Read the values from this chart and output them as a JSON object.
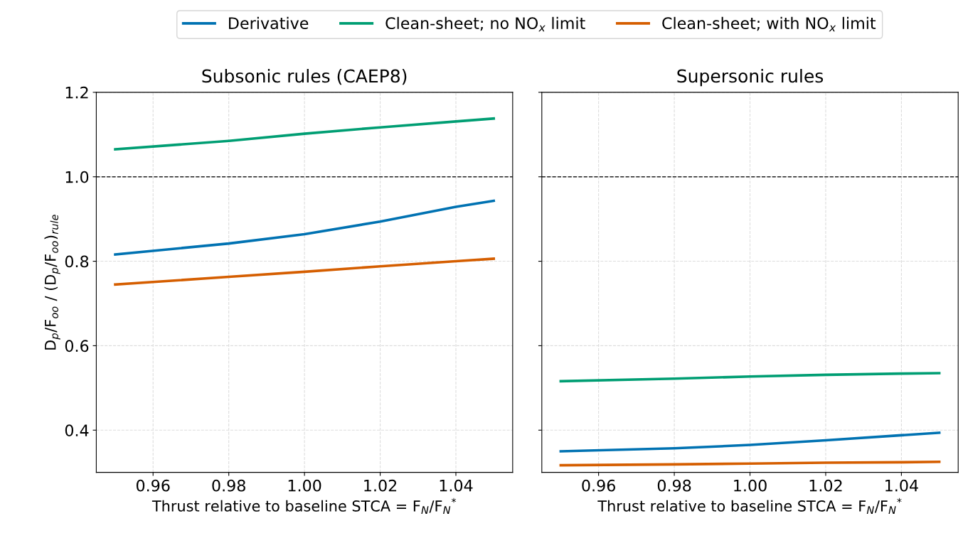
{
  "chart_data": [
    {
      "type": "line",
      "title": "Subsonic rules (CAEP8)",
      "xlabel": "Thrust relative to baseline STCA = F$_{N}$/F$_{N}$$^{*}$",
      "ylabel": "D$_{p}$/F$_{oo}$ / (D$_{p}$/F$_{oo}$)$_{rule}$",
      "x": [
        0.95,
        0.98,
        1.0,
        1.02,
        1.04,
        1.05
      ],
      "xlim": [
        0.945,
        1.055
      ],
      "xticks": [
        {
          "value": 0.96,
          "label": "0.96"
        },
        {
          "value": 0.98,
          "label": "0.98"
        },
        {
          "value": 1.0,
          "label": "1.00"
        },
        {
          "value": 1.02,
          "label": "1.02"
        },
        {
          "value": 1.04,
          "label": "1.04"
        }
      ],
      "ylim": [
        0.3,
        1.2
      ],
      "yticks": [
        0.4,
        0.6,
        0.8,
        {
          "value": 1.0,
          "label": "1.0"
        },
        1.2
      ],
      "grid": true,
      "legend": "top",
      "line_style": "solid",
      "marker": "none",
      "ref_lines": [
        {
          "axis": "y",
          "value": 1.0,
          "color": "#222222",
          "line_style": "dashed"
        }
      ],
      "series": [
        {
          "name": "Derivative",
          "color": "#0072b2",
          "values": [
            0.816,
            0.842,
            0.864,
            0.894,
            0.929,
            0.943
          ]
        },
        {
          "name": "Clean-sheet; no NO$_{x}$ limit",
          "color": "#009e73",
          "values": [
            1.065,
            1.085,
            1.102,
            1.117,
            1.131,
            1.138
          ]
        },
        {
          "name": "Clean-sheet; with NO$_{x}$ limit",
          "color": "#d55e00",
          "values": [
            0.745,
            0.763,
            0.775,
            0.788,
            0.8,
            0.806
          ]
        }
      ]
    },
    {
      "type": "line",
      "title": "Supersonic rules",
      "xlabel": "Thrust relative to baseline STCA = F$_{N}$/F$_{N}$$^{*}$",
      "x": [
        0.95,
        0.98,
        1.0,
        1.02,
        1.04,
        1.05
      ],
      "xlim": [
        0.945,
        1.055
      ],
      "xticks": [
        {
          "value": 0.96,
          "label": "0.96"
        },
        {
          "value": 0.98,
          "label": "0.98"
        },
        {
          "value": 1.0,
          "label": "1.00"
        },
        {
          "value": 1.02,
          "label": "1.02"
        },
        {
          "value": 1.04,
          "label": "1.04"
        }
      ],
      "ylim": [
        0.3,
        1.2
      ],
      "yticks": [
        0.4,
        0.6,
        0.8,
        1.0,
        1.2
      ],
      "tick_labels": "x",
      "grid": true,
      "line_style": "solid",
      "marker": "none",
      "ref_lines": [
        {
          "axis": "y",
          "value": 1.0,
          "color": "#222222",
          "line_style": "dashed"
        }
      ],
      "series": [
        {
          "color": "#0072b2",
          "values": [
            0.35,
            0.357,
            0.365,
            0.376,
            0.388,
            0.394
          ]
        },
        {
          "color": "#009e73",
          "values": [
            0.516,
            0.522,
            0.527,
            0.531,
            0.534,
            0.535
          ]
        },
        {
          "color": "#d55e00",
          "values": [
            0.317,
            0.319,
            0.321,
            0.323,
            0.324,
            0.325
          ]
        }
      ]
    }
  ]
}
